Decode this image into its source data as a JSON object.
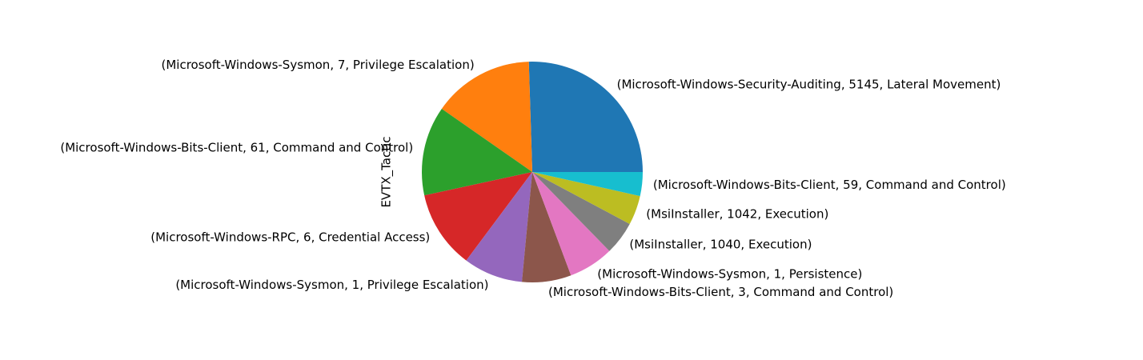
{
  "chart_data": {
    "type": "pie",
    "ylabel": "EVTX_Tactic",
    "start_angle_deg": 0,
    "direction": "counterclockwise",
    "slices": [
      {
        "label": "(Microsoft-Windows-Security-Auditing, 5145, Lateral Movement)",
        "value": 25.5,
        "color": "#1f77b4"
      },
      {
        "label": "(Microsoft-Windows-Sysmon, 7, Privilege Escalation)",
        "value": 14.8,
        "color": "#ff7f0e"
      },
      {
        "label": "(Microsoft-Windows-Bits-Client, 61, Command and Control)",
        "value": 13.1,
        "color": "#2ca02c"
      },
      {
        "label": "(Microsoft-Windows-RPC, 6, Credential Access)",
        "value": 11.4,
        "color": "#d62728"
      },
      {
        "label": "(Microsoft-Windows-Sysmon, 1, Privilege Escalation)",
        "value": 8.7,
        "color": "#9467bd"
      },
      {
        "label": "(Microsoft-Windows-Bits-Client, 3, Command and Control)",
        "value": 7.2,
        "color": "#8c564b"
      },
      {
        "label": "(Microsoft-Windows-Sysmon, 1, Persistence)",
        "value": 6.6,
        "color": "#e377c2"
      },
      {
        "label": "(MsiInstaller, 1040, Execution)",
        "value": 4.9,
        "color": "#7f7f7f"
      },
      {
        "label": "(MsiInstaller, 1042, Execution)",
        "value": 4.3,
        "color": "#bcbd22"
      },
      {
        "label": "(Microsoft-Windows-Bits-Client, 59, Command and Control)",
        "value": 3.5,
        "color": "#17becf"
      }
    ]
  }
}
